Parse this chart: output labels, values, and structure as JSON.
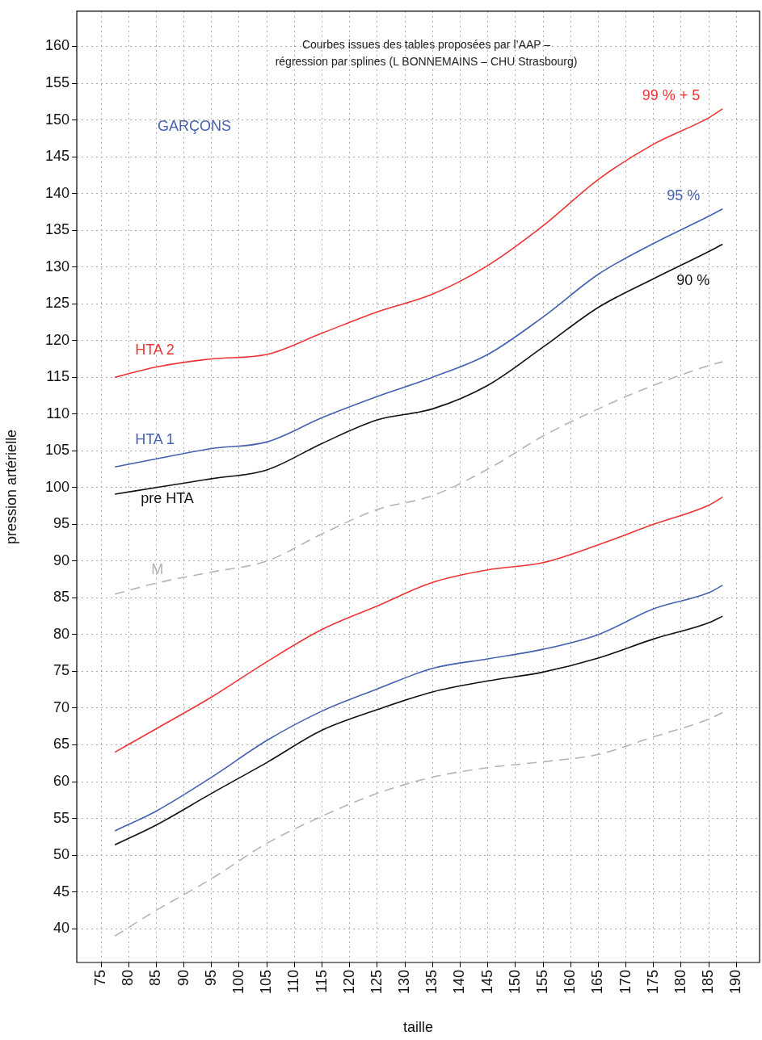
{
  "chart_data": {
    "type": "line",
    "title": "Courbes issues des tables proposées par l’AAP –",
    "subtitle": "régression par splines (L BONNEMAINS – CHU Strasbourg)",
    "xlabel": "taille",
    "ylabel": "pression artérielle",
    "x": [
      77.5,
      85,
      95,
      105,
      115,
      125,
      135,
      145,
      155,
      165,
      175,
      185,
      187.5
    ],
    "series": [
      {
        "name": "99 % + 5",
        "color": "#ee3333",
        "values": [
          115.0,
          116.4,
          117.5,
          118.1,
          121.0,
          123.9,
          126.3,
          130.2,
          135.6,
          141.9,
          146.7,
          150.3,
          151.5
        ]
      },
      {
        "name": "95 %",
        "color": "#4460b0",
        "values": [
          102.8,
          103.9,
          105.3,
          106.2,
          109.5,
          112.4,
          115.0,
          118.1,
          123.2,
          129.0,
          133.2,
          136.9,
          137.9
        ]
      },
      {
        "name": "90 %",
        "color": "#111111",
        "values": [
          99.1,
          100.0,
          101.2,
          102.4,
          106.0,
          109.2,
          110.7,
          113.9,
          119.1,
          124.5,
          128.4,
          132.1,
          133.1
        ]
      },
      {
        "name": "M",
        "color": "#b4b4b4",
        "line_style": "dashed",
        "values": [
          85.5,
          87.0,
          88.5,
          90.0,
          93.7,
          97.0,
          98.9,
          102.5,
          107.0,
          110.7,
          113.9,
          116.6,
          117.1
        ]
      },
      {
        "color": "#ee3333",
        "values": [
          64.0,
          67.2,
          71.5,
          76.3,
          80.7,
          83.9,
          87.1,
          88.8,
          89.8,
          92.2,
          95.0,
          97.6,
          98.7
        ]
      },
      {
        "color": "#4460b0",
        "values": [
          53.3,
          56.0,
          60.6,
          65.6,
          69.6,
          72.6,
          75.4,
          76.7,
          78.0,
          80.0,
          83.5,
          85.7,
          86.7
        ]
      },
      {
        "color": "#111111",
        "values": [
          51.4,
          54.1,
          58.4,
          62.6,
          67.0,
          69.8,
          72.2,
          73.7,
          74.9,
          76.8,
          79.4,
          81.6,
          82.5
        ]
      },
      {
        "color": "#b4b4b4",
        "line_style": "dashed",
        "values": [
          39.0,
          42.5,
          46.8,
          51.6,
          55.3,
          58.4,
          60.6,
          61.9,
          62.7,
          63.7,
          66.1,
          68.5,
          69.4
        ]
      }
    ],
    "annotations": [
      "GARÇONS",
      "HTA 2",
      "HTA 1",
      "pre HTA"
    ],
    "xlim": [
      70.6,
      194.2
    ],
    "ylim": [
      35.4,
      164.8
    ],
    "xticks": [
      75,
      80,
      85,
      90,
      95,
      100,
      105,
      110,
      115,
      120,
      125,
      130,
      135,
      140,
      145,
      150,
      155,
      160,
      165,
      170,
      175,
      180,
      185,
      190
    ],
    "yticks": [
      40,
      45,
      50,
      55,
      60,
      65,
      70,
      75,
      80,
      85,
      90,
      95,
      100,
      105,
      110,
      115,
      120,
      125,
      130,
      135,
      140,
      145,
      150,
      155,
      160
    ],
    "grid": true
  }
}
